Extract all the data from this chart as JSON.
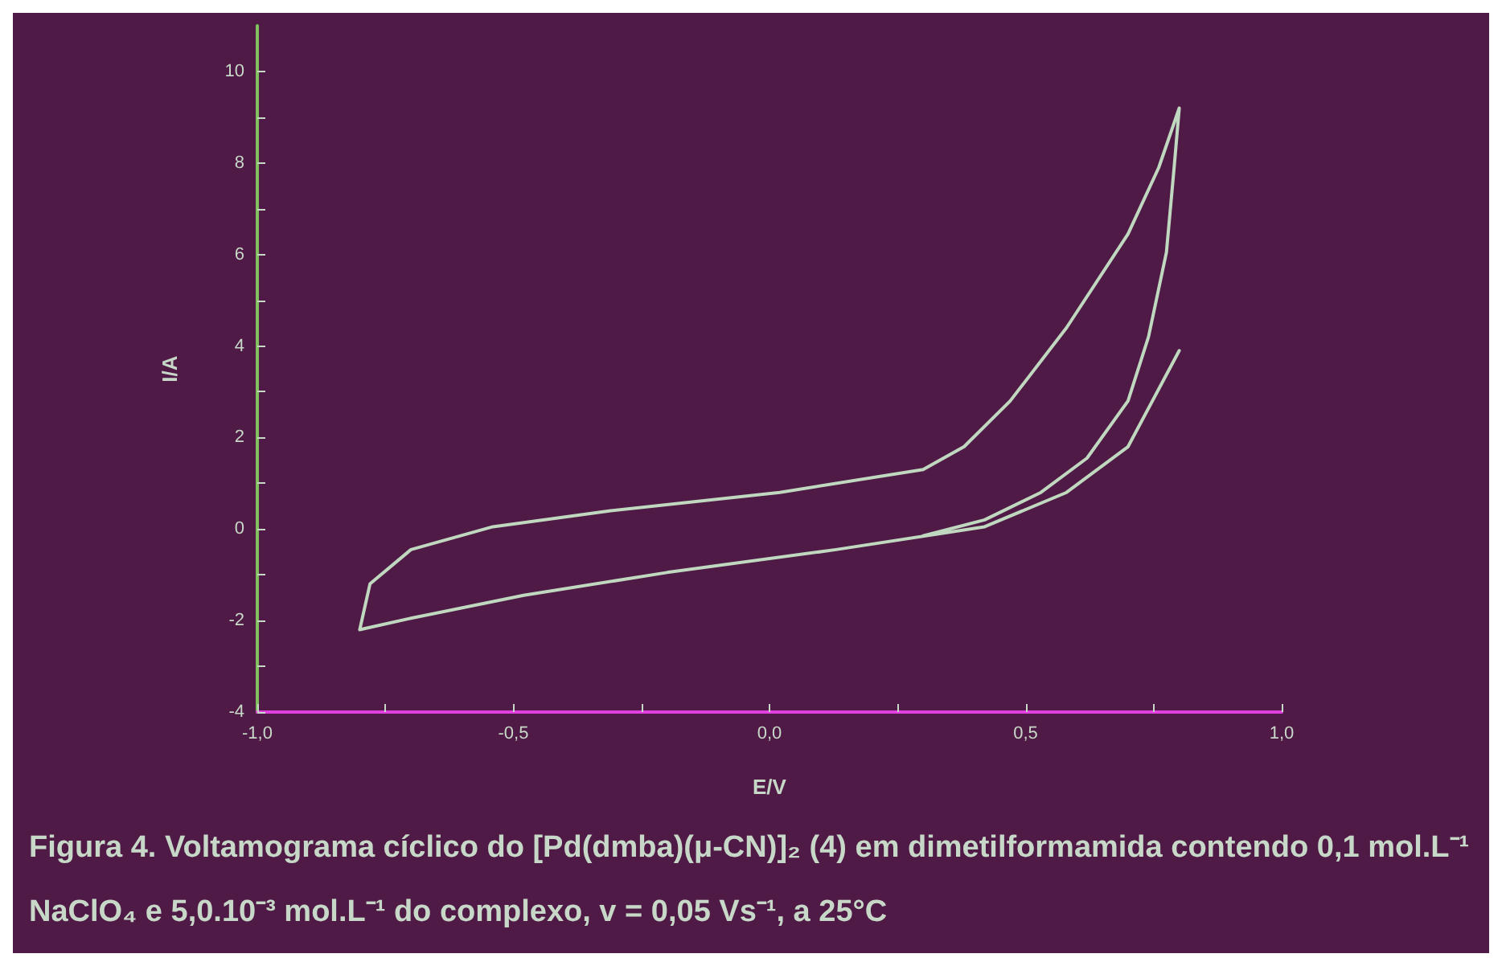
{
  "chart_data": {
    "type": "line",
    "xlabel": "E/V",
    "ylabel": "I/A",
    "annotations": [
      "Figura 4.  Voltamograma cíclico do [Pd(dmba)(μ-CN)]₂ (4) em dimetilformamida contendo 0,1 mol.L⁻¹ NaClO₄ e 5,0.10⁻³ mol.L⁻¹ do complexo, v = 0,05 Vs⁻¹, a 25°C"
    ],
    "xlim": [
      -1,
      1
    ],
    "ylim": [
      -4,
      11
    ],
    "xticks": [
      {
        "value": -1,
        "label": "-1,0"
      },
      {
        "value": -0.75,
        "label": null
      },
      {
        "value": -0.5,
        "label": "-0,5"
      },
      {
        "value": -0.25,
        "label": null
      },
      {
        "value": 0,
        "label": "0,0"
      },
      {
        "value": 0.25,
        "label": null
      },
      {
        "value": 0.5,
        "label": "0,5"
      },
      {
        "value": 0.75,
        "label": null
      },
      {
        "value": 1,
        "label": "1,0"
      }
    ],
    "yticks": [
      -4,
      {
        "value": -3,
        "label": null
      },
      -2,
      {
        "value": -1,
        "label": null
      },
      0,
      {
        "value": 1,
        "label": null
      },
      2,
      {
        "value": 3,
        "label": null
      },
      4,
      {
        "value": 5,
        "label": null
      },
      6,
      {
        "value": 7,
        "label": null
      },
      8,
      {
        "value": 9,
        "label": null
      },
      10
    ],
    "marker": "none",
    "series": [
      {
        "color": "#c0d8c0",
        "x": [
          0.8,
          0.7,
          0.58,
          0.42,
          0.13,
          -0.2,
          -0.48,
          -0.7,
          -0.8,
          -0.78,
          -0.7,
          -0.54,
          -0.31,
          0.02,
          0.3,
          0.38,
          0.47,
          0.58,
          0.7,
          0.76,
          0.8,
          0.79,
          0.775,
          0.74,
          0.7,
          0.62,
          0.53,
          0.42,
          0.3
        ],
        "values": [
          3.9,
          1.8,
          0.8,
          0.05,
          -0.45,
          -0.95,
          -1.45,
          -1.95,
          -2.2,
          -1.2,
          -0.45,
          0.05,
          0.4,
          0.8,
          1.3,
          1.8,
          2.8,
          4.4,
          6.45,
          7.9,
          9.2,
          7.9,
          6.05,
          4.2,
          2.8,
          1.55,
          0.8,
          0.2,
          -0.15
        ]
      }
    ]
  }
}
